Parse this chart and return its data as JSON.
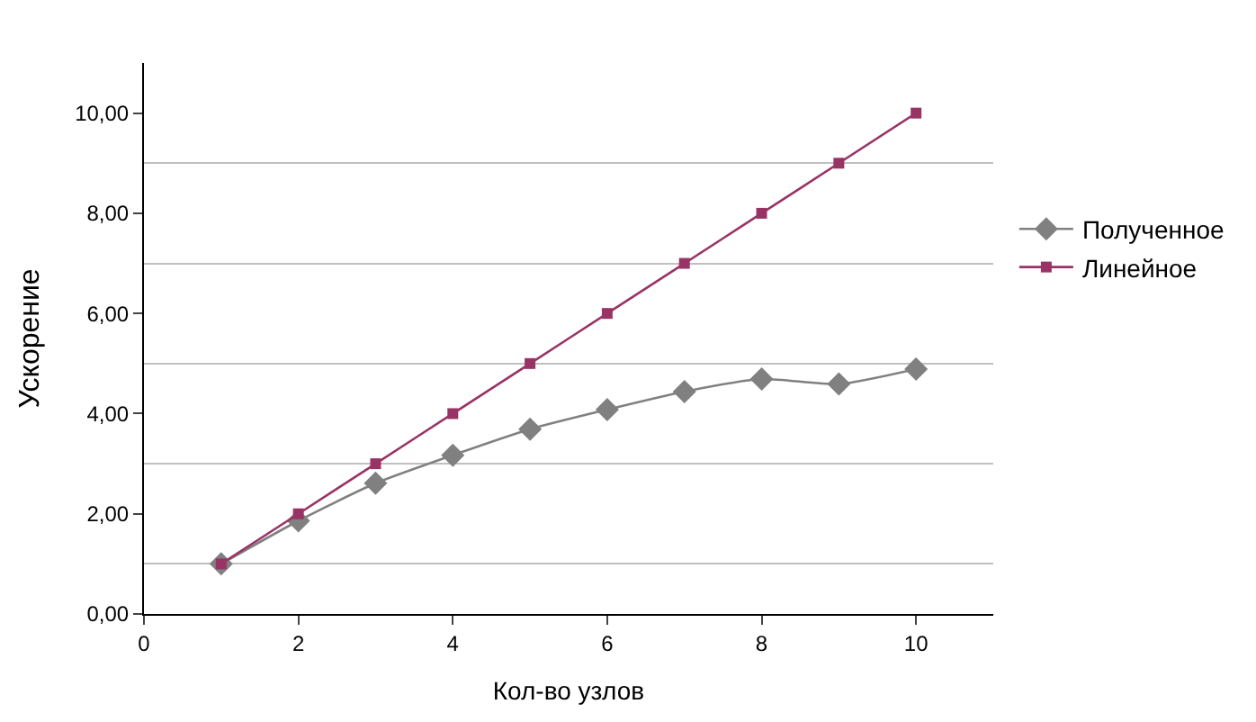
{
  "chart_data": {
    "type": "line",
    "xlabel": "Кол-во узлов",
    "ylabel": "Ускорение",
    "x": [
      1,
      2,
      3,
      4,
      5,
      6,
      7,
      8,
      9,
      10
    ],
    "series": [
      {
        "name": "Полученное",
        "color": "#808080",
        "marker": "diamond",
        "values": [
          1.0,
          1.86,
          2.61,
          3.17,
          3.69,
          4.08,
          4.44,
          4.69,
          4.59,
          4.89
        ]
      },
      {
        "name": "Линейное",
        "color": "#993366",
        "marker": "square",
        "values": [
          1,
          2,
          3,
          4,
          5,
          6,
          7,
          8,
          9,
          10
        ]
      }
    ],
    "xlim": [
      0,
      11
    ],
    "xticks": [
      0,
      2,
      4,
      6,
      8,
      10
    ],
    "ylim": [
      0,
      11
    ],
    "yticks": [
      {
        "value": 0,
        "label": "0,00"
      },
      {
        "value": 1,
        "label": null
      },
      {
        "value": 2,
        "label": "2,00"
      },
      {
        "value": 3,
        "label": null
      },
      {
        "value": 4,
        "label": "4,00"
      },
      {
        "value": 5,
        "label": null
      },
      {
        "value": 6,
        "label": "6,00"
      },
      {
        "value": 7,
        "label": null
      },
      {
        "value": 8,
        "label": "8,00"
      },
      {
        "value": 9,
        "label": null
      },
      {
        "value": 10,
        "label": "10,00"
      }
    ],
    "grid": "y",
    "legend": "right",
    "line_style": "solid"
  }
}
